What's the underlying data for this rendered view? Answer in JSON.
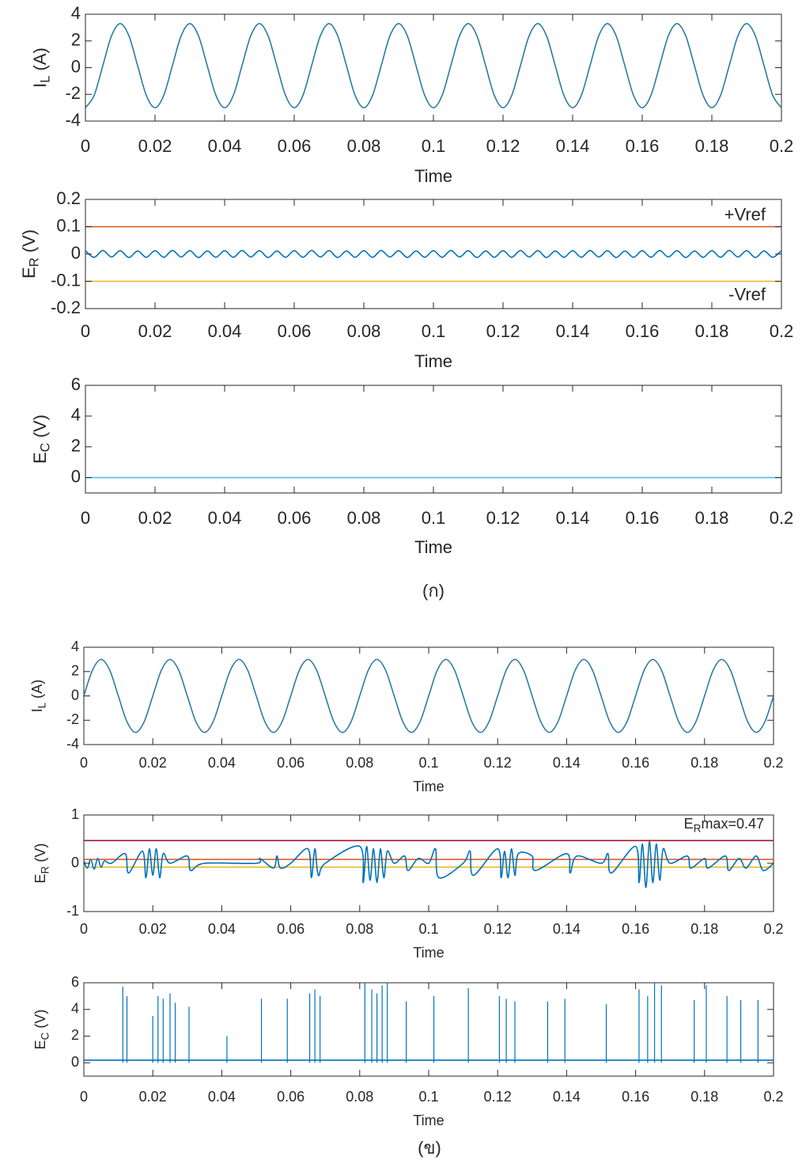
{
  "chart_data": [
    {
      "type": "line",
      "ylabel": [
        "I",
        "L",
        " (A)"
      ],
      "xlabel": "Time",
      "xlim": [
        0,
        0.2
      ],
      "xticks": [
        0,
        0.02,
        0.04,
        0.06,
        0.08,
        0.1,
        0.12,
        0.14,
        0.16,
        0.18,
        0.2
      ],
      "ylim": [
        -4,
        4
      ],
      "yticks": [
        -4,
        -2,
        0,
        2,
        4
      ],
      "x": [
        0,
        0.0025,
        0.005,
        0.0075,
        0.01,
        0.0125,
        0.015,
        0.0175,
        0.02,
        0.0225,
        0.025,
        0.0275,
        0.03,
        0.0325,
        0.035,
        0.0375,
        0.04,
        0.0425,
        0.045,
        0.0475,
        0.05,
        0.0525,
        0.055,
        0.0575,
        0.06,
        0.0625,
        0.065,
        0.0675,
        0.07,
        0.0725,
        0.075,
        0.0775,
        0.08,
        0.0825,
        0.085,
        0.0875,
        0.09,
        0.0925,
        0.095,
        0.0975,
        0.1,
        0.1025,
        0.105,
        0.1075,
        0.11,
        0.1125,
        0.115,
        0.1175,
        0.12,
        0.1225,
        0.125,
        0.1275,
        0.13,
        0.1325,
        0.135,
        0.1375,
        0.14,
        0.1425,
        0.145,
        0.1475,
        0.15,
        0.1525,
        0.155,
        0.1575,
        0.16,
        0.1625,
        0.165,
        0.1675,
        0.17,
        0.1725,
        0.175,
        0.1775,
        0.18,
        0.1825,
        0.185,
        0.1875,
        0.19,
        0.1925,
        0.195,
        0.1975,
        0.2
      ],
      "series": [
        {
          "color": "#2b7aa3",
          "values": [
            -3,
            -2.08,
            0.15,
            2.38,
            3.3,
            2.38,
            0.15,
            -2.08,
            -3,
            -2.08,
            0.15,
            2.38,
            3.3,
            2.38,
            0.15,
            -2.08,
            -3,
            -2.08,
            0.15,
            2.38,
            3.3,
            2.38,
            0.15,
            -2.08,
            -3,
            -2.08,
            0.15,
            2.38,
            3.3,
            2.38,
            0.15,
            -2.08,
            -3,
            -2.08,
            0.15,
            2.38,
            3.3,
            2.38,
            0.15,
            -2.08,
            -3,
            -2.08,
            0.15,
            2.38,
            3.3,
            2.38,
            0.15,
            -2.08,
            -3,
            -2.08,
            0.15,
            2.38,
            3.3,
            2.38,
            0.15,
            -2.08,
            -3,
            -2.08,
            0.15,
            2.38,
            3.3,
            2.38,
            0.15,
            -2.08,
            -3,
            -2.08,
            0.15,
            2.38,
            3.3,
            2.38,
            0.15,
            -2.08,
            -3,
            -2.08,
            0.15,
            2.38,
            3.3,
            2.38,
            0.15,
            -2.08,
            -3
          ]
        }
      ]
    },
    {
      "type": "line",
      "ylabel": [
        "E",
        "R",
        " (V)"
      ],
      "xlabel": "Time",
      "xlim": [
        0,
        0.2
      ],
      "xticks": [
        0,
        0.02,
        0.04,
        0.06,
        0.08,
        0.1,
        0.12,
        0.14,
        0.16,
        0.18,
        0.2
      ],
      "ylim": [
        -0.2,
        0.2
      ],
      "yticks": [
        -0.2,
        -0.1,
        0,
        0.1,
        0.2
      ],
      "x": [
        0,
        0.0025,
        0.005,
        0.0075,
        0.01,
        0.0125,
        0.015,
        0.0175,
        0.02,
        0.0225,
        0.025,
        0.0275,
        0.03,
        0.0325,
        0.035,
        0.0375,
        0.04,
        0.0425,
        0.045,
        0.0475,
        0.05,
        0.0525,
        0.055,
        0.0575,
        0.06,
        0.0625,
        0.065,
        0.0675,
        0.07,
        0.0725,
        0.075,
        0.0775,
        0.08,
        0.0825,
        0.085,
        0.0875,
        0.09,
        0.0925,
        0.095,
        0.0975,
        0.1,
        0.1025,
        0.105,
        0.1075,
        0.11,
        0.1125,
        0.115,
        0.1175,
        0.12,
        0.1225,
        0.125,
        0.1275,
        0.13,
        0.1325,
        0.135,
        0.1375,
        0.14,
        0.1425,
        0.145,
        0.1475,
        0.15,
        0.1525,
        0.155,
        0.1575,
        0.16,
        0.1625,
        0.165,
        0.1675,
        0.17,
        0.1725,
        0.175,
        0.1775,
        0.18,
        0.1825,
        0.185,
        0.1875,
        0.19,
        0.1925,
        0.195,
        0.1975,
        0.2
      ],
      "series": [
        {
          "color": "#0072bd",
          "values": [
            0.012,
            -0.012,
            0.013,
            -0.011,
            0.012,
            -0.013,
            0.011,
            -0.012,
            0.012,
            -0.012,
            0.013,
            -0.011,
            0.012,
            -0.013,
            0.011,
            -0.012,
            0.012,
            -0.012,
            0.013,
            -0.011,
            0.012,
            -0.013,
            0.011,
            -0.012,
            0.012,
            -0.012,
            0.013,
            -0.011,
            0.012,
            -0.013,
            0.011,
            -0.012,
            0.012,
            -0.012,
            0.013,
            -0.011,
            0.012,
            -0.013,
            0.011,
            -0.012,
            0.012,
            -0.012,
            0.013,
            -0.011,
            0.012,
            -0.013,
            0.011,
            -0.012,
            0.012,
            -0.012,
            0.013,
            -0.011,
            0.012,
            -0.013,
            0.011,
            -0.012,
            0.012,
            -0.012,
            0.013,
            -0.011,
            0.012,
            -0.013,
            0.011,
            -0.012,
            0.012,
            -0.012,
            0.013,
            -0.011,
            0.012,
            -0.013,
            0.011,
            -0.012,
            0.012,
            -0.012,
            0.013,
            -0.011,
            0.012,
            -0.013,
            0.011,
            -0.012,
            0.012
          ]
        },
        {
          "name": "+Vref",
          "color": "#d95319",
          "x": [
            0,
            0.2
          ],
          "values": [
            0.1,
            0.1
          ]
        },
        {
          "name": "-Vref",
          "color": "#edb120",
          "x": [
            0,
            0.2
          ],
          "values": [
            -0.1,
            -0.1
          ]
        }
      ]
    },
    {
      "type": "line",
      "ylabel": [
        "E",
        "C",
        " (V)"
      ],
      "xlabel": "Time",
      "xlim": [
        0,
        0.2
      ],
      "xticks": [
        0,
        0.02,
        0.04,
        0.06,
        0.08,
        0.1,
        0.12,
        0.14,
        0.16,
        0.18,
        0.2
      ],
      "ylim": [
        -1,
        6
      ],
      "yticks": [
        0,
        2,
        4,
        6
      ],
      "series": [
        {
          "color": "#4dbeee",
          "x": [
            0,
            0.2
          ],
          "values": [
            0,
            0
          ]
        }
      ]
    },
    {
      "type": "line",
      "ylabel": [
        "I",
        "L",
        " (A)"
      ],
      "xlabel": "Time",
      "xlim": [
        0,
        0.2
      ],
      "xticks": [
        0,
        0.02,
        0.04,
        0.06,
        0.08,
        0.1,
        0.12,
        0.14,
        0.16,
        0.18,
        0.2
      ],
      "ylim": [
        -4,
        4
      ],
      "yticks": [
        -4,
        -2,
        0,
        2,
        4
      ],
      "x": [
        0,
        0.0025,
        0.005,
        0.0075,
        0.01,
        0.0125,
        0.015,
        0.0175,
        0.02,
        0.0225,
        0.025,
        0.0275,
        0.03,
        0.0325,
        0.035,
        0.0375,
        0.04,
        0.0425,
        0.045,
        0.0475,
        0.05,
        0.0525,
        0.055,
        0.0575,
        0.06,
        0.0625,
        0.065,
        0.0675,
        0.07,
        0.0725,
        0.075,
        0.0775,
        0.08,
        0.0825,
        0.085,
        0.0875,
        0.09,
        0.0925,
        0.095,
        0.0975,
        0.1,
        0.1025,
        0.105,
        0.1075,
        0.11,
        0.1125,
        0.115,
        0.1175,
        0.12,
        0.1225,
        0.125,
        0.1275,
        0.13,
        0.1325,
        0.135,
        0.1375,
        0.14,
        0.1425,
        0.145,
        0.1475,
        0.15,
        0.1525,
        0.155,
        0.1575,
        0.16,
        0.1625,
        0.165,
        0.1675,
        0.17,
        0.1725,
        0.175,
        0.1775,
        0.18,
        0.1825,
        0.185,
        0.1875,
        0.19,
        0.1925,
        0.195,
        0.1975,
        0.2
      ],
      "series": [
        {
          "color": "#2b7aa3",
          "values": [
            0,
            2.12,
            3,
            2.12,
            0,
            -2.12,
            -3,
            -2.12,
            0,
            2.12,
            3,
            2.12,
            0,
            -2.12,
            -3,
            -2.12,
            0,
            2.12,
            3,
            2.12,
            0,
            -2.12,
            -3,
            -2.12,
            0,
            2.12,
            3,
            2.12,
            0,
            -2.12,
            -3,
            -2.12,
            0,
            2.12,
            3,
            2.12,
            0,
            -2.12,
            -3,
            -2.12,
            0,
            2.12,
            3,
            2.12,
            0,
            -2.12,
            -3,
            -2.12,
            0,
            2.12,
            3,
            2.12,
            0,
            -2.12,
            -3,
            -2.12,
            0,
            2.12,
            3,
            2.12,
            0,
            -2.12,
            -3,
            -2.12,
            0,
            2.12,
            3,
            2.12,
            0,
            -2.12,
            -3,
            -2.12,
            0,
            2.12,
            3,
            2.12,
            0,
            -2.12,
            -3,
            -2.12,
            0
          ]
        }
      ]
    },
    {
      "type": "line",
      "ylabel": [
        "E",
        "R",
        " (V)"
      ],
      "xlabel": "Time",
      "xlim": [
        0,
        0.2
      ],
      "xticks": [
        0,
        0.02,
        0.04,
        0.06,
        0.08,
        0.1,
        0.12,
        0.14,
        0.16,
        0.18,
        0.2
      ],
      "ylim": [
        -1,
        1
      ],
      "yticks": [
        -1,
        0,
        1
      ],
      "annotation": [
        "E",
        "R",
        "max=0.47"
      ],
      "series": [
        {
          "color": "#a2142f",
          "x": [
            0,
            0.2
          ],
          "values": [
            0.47,
            0.47
          ]
        },
        {
          "color": "#d95319",
          "x": [
            0,
            0.2
          ],
          "values": [
            0.08,
            0.08
          ]
        },
        {
          "color": "#edb120",
          "x": [
            0,
            0.2
          ],
          "values": [
            -0.08,
            -0.08
          ]
        },
        {
          "color": "#0072bd",
          "x": [
            0,
            0.001,
            0.002,
            0.003,
            0.004,
            0.005,
            0.006,
            0.008,
            0.012,
            0.013,
            0.017,
            0.018,
            0.019,
            0.02,
            0.021,
            0.022,
            0.023,
            0.025,
            0.03,
            0.031,
            0.035,
            0.05,
            0.051,
            0.055,
            0.056,
            0.057,
            0.06,
            0.065,
            0.066,
            0.067,
            0.068,
            0.07,
            0.08,
            0.081,
            0.082,
            0.083,
            0.084,
            0.085,
            0.086,
            0.087,
            0.088,
            0.09,
            0.093,
            0.094,
            0.097,
            0.1,
            0.102,
            0.103,
            0.11,
            0.112,
            0.113,
            0.12,
            0.121,
            0.122,
            0.123,
            0.124,
            0.125,
            0.126,
            0.13,
            0.131,
            0.14,
            0.141,
            0.143,
            0.15,
            0.152,
            0.153,
            0.16,
            0.161,
            0.162,
            0.163,
            0.164,
            0.165,
            0.166,
            0.167,
            0.168,
            0.17,
            0.175,
            0.176,
            0.18,
            0.181,
            0.186,
            0.187,
            0.19,
            0.192,
            0.195,
            0.197,
            0.2
          ],
          "values": [
            0.05,
            -0.1,
            0.08,
            -0.12,
            0.1,
            -0.08,
            0.05,
            0,
            0.2,
            -0.2,
            0.25,
            -0.3,
            0.3,
            -0.25,
            0.3,
            -0.3,
            0.2,
            0,
            0.15,
            -0.15,
            0,
            0,
            0.1,
            -0.1,
            0.15,
            -0.1,
            0,
            0.3,
            -0.3,
            0.3,
            -0.25,
            0,
            0.35,
            -0.4,
            0.35,
            -0.35,
            0.3,
            -0.4,
            0.3,
            -0.3,
            0.25,
            0,
            0.15,
            -0.15,
            0.1,
            0,
            0.3,
            -0.3,
            0,
            0.25,
            -0.25,
            0.3,
            -0.3,
            0.25,
            -0.3,
            0.3,
            -0.25,
            0.2,
            0.15,
            -0.15,
            0.2,
            -0.2,
            0.15,
            0,
            0.2,
            -0.2,
            0.35,
            -0.4,
            0.4,
            -0.5,
            0.45,
            -0.4,
            0.4,
            -0.35,
            0.3,
            0,
            0.15,
            -0.1,
            0.1,
            -0.1,
            0.15,
            -0.15,
            0.1,
            -0.1,
            0.15,
            -0.15,
            0
          ]
        }
      ]
    },
    {
      "type": "line",
      "ylabel": [
        "E",
        "C",
        " (V)"
      ],
      "xlabel": "Time",
      "xlim": [
        0,
        0.2
      ],
      "xticks": [
        0,
        0.02,
        0.04,
        0.06,
        0.08,
        0.1,
        0.12,
        0.14,
        0.16,
        0.18,
        0.2
      ],
      "ylim": [
        -1,
        6
      ],
      "yticks": [
        0,
        2,
        4,
        6
      ],
      "series": [
        {
          "color": "#0072bd",
          "x": [
            0,
            0.2
          ],
          "values": [
            0.2,
            0.2
          ]
        },
        {
          "color": "#0072bd",
          "style": "stem",
          "x": [
            0.0113,
            0.0125,
            0.02,
            0.0215,
            0.023,
            0.025,
            0.0265,
            0.0305,
            0.0415,
            0.0515,
            0.059,
            0.0655,
            0.067,
            0.0685,
            0.0815,
            0.0835,
            0.085,
            0.0865,
            0.088,
            0.0935,
            0.1015,
            0.1115,
            0.1205,
            0.1225,
            0.125,
            0.1345,
            0.1395,
            0.1515,
            0.161,
            0.1635,
            0.1655,
            0.1675,
            0.177,
            0.1805,
            0.1865,
            0.1905,
            0.1955
          ],
          "values": [
            5.7,
            5,
            3.5,
            5,
            4.8,
            5.2,
            4.5,
            4.2,
            2,
            4.8,
            4.8,
            5.2,
            5.5,
            5,
            6,
            5.5,
            5.2,
            5.8,
            6,
            4.6,
            5,
            5.6,
            5,
            4.8,
            4.6,
            4.6,
            4.8,
            4.4,
            5.5,
            5,
            6,
            5.8,
            4.7,
            5.8,
            5,
            4.7,
            4.7
          ]
        }
      ]
    }
  ],
  "captions": [
    "(ก)",
    "(ข)"
  ]
}
